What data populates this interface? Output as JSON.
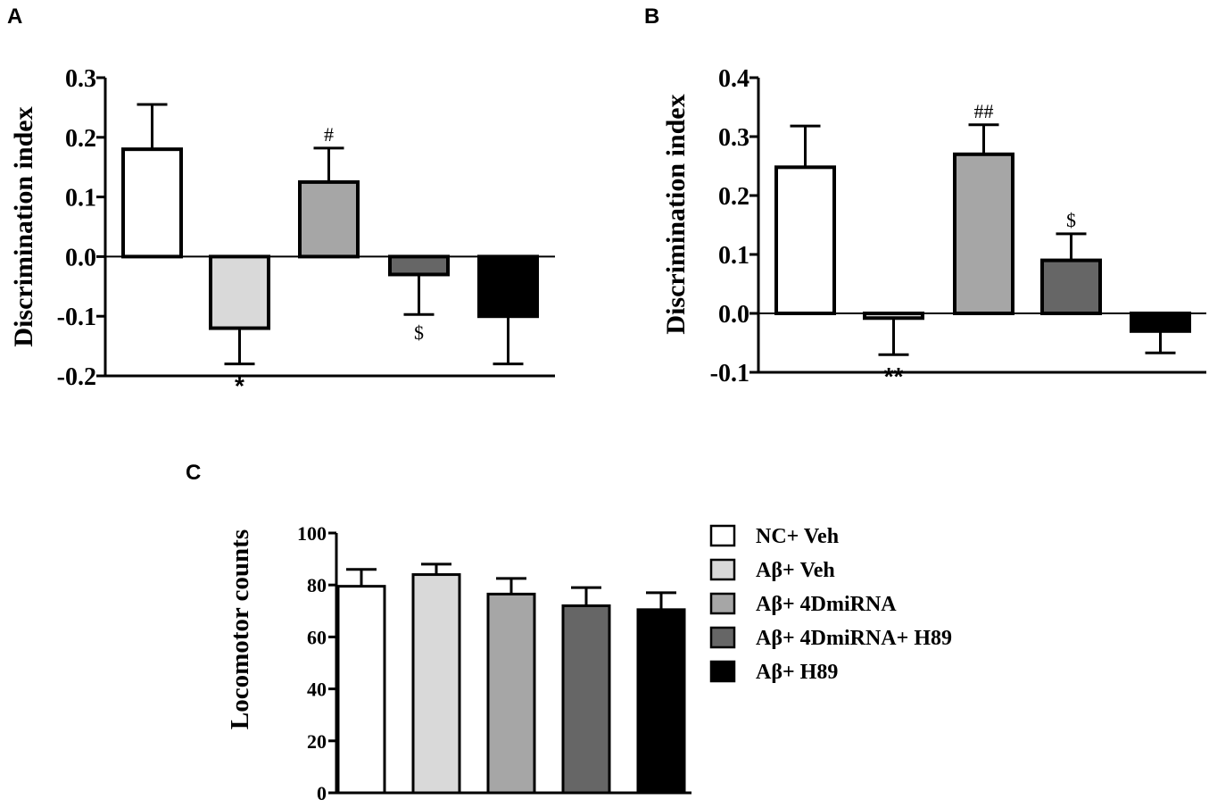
{
  "colors": {
    "NC+ Veh": "#ffffff",
    "Aβ+ Veh": "#d9d9d9",
    "Aβ+ 4DmiRNA": "#a6a6a6",
    "Aβ+ 4DmiRNA+ H89": "#666666",
    "Aβ+ H89": "#000000"
  },
  "legend": [
    "NC+ Veh",
    "Aβ+ Veh",
    "Aβ+ 4DmiRNA",
    "Aβ+ 4DmiRNA+ H89",
    "Aβ+ H89"
  ],
  "chart_data": [
    {
      "panel": "A",
      "type": "bar",
      "ylabel": "Discrimination index",
      "ylim": [
        -0.2,
        0.3
      ],
      "yticks": [
        "-0.2",
        "-0.1",
        "0.0",
        "0.1",
        "0.2",
        "0.3"
      ],
      "categories": [
        "NC+ Veh",
        "Aβ+ Veh",
        "Aβ+ 4DmiRNA",
        "Aβ+ 4DmiRNA+ H89",
        "Aβ+ H89"
      ],
      "values": [
        0.18,
        -0.12,
        0.125,
        -0.03,
        -0.1
      ],
      "errors": [
        0.075,
        0.06,
        0.057,
        0.067,
        0.08
      ],
      "annotations": [
        {
          "category": "Aβ+ Veh",
          "text": "*",
          "position": "below"
        },
        {
          "category": "Aβ+ 4DmiRNA",
          "text": "#",
          "position": "above"
        },
        {
          "category": "Aβ+ 4DmiRNA+ H89",
          "text": "$",
          "position": "below"
        }
      ]
    },
    {
      "panel": "B",
      "type": "bar",
      "ylabel": "Discrimination index",
      "ylim": [
        -0.1,
        0.4
      ],
      "yticks": [
        "-0.1",
        "0.0",
        "0.1",
        "0.2",
        "0.3",
        "0.4"
      ],
      "categories": [
        "NC+ Veh",
        "Aβ+ Veh",
        "Aβ+ 4DmiRNA",
        "Aβ+ 4DmiRNA+ H89",
        "Aβ+ H89"
      ],
      "values": [
        0.248,
        -0.008,
        0.27,
        0.09,
        -0.03
      ],
      "errors": [
        0.07,
        0.062,
        0.05,
        0.045,
        0.037
      ],
      "annotations": [
        {
          "category": "Aβ+ Veh",
          "text": "**",
          "position": "below"
        },
        {
          "category": "Aβ+ 4DmiRNA",
          "text": "##",
          "position": "above"
        },
        {
          "category": "Aβ+ 4DmiRNA+ H89",
          "text": "$",
          "position": "above"
        }
      ]
    },
    {
      "panel": "C",
      "type": "bar",
      "ylabel": "Locomotor counts",
      "ylim": [
        0,
        100
      ],
      "yticks": [
        "0",
        "20",
        "40",
        "60",
        "80",
        "100"
      ],
      "categories": [
        "NC+ Veh",
        "Aβ+ Veh",
        "Aβ+ 4DmiRNA",
        "Aβ+ 4DmiRNA+ H89",
        "Aβ+ H89"
      ],
      "values": [
        79.5,
        84,
        76.5,
        72,
        70.5
      ],
      "errors": [
        6.5,
        4,
        6,
        7,
        6.5
      ],
      "annotations": []
    }
  ]
}
